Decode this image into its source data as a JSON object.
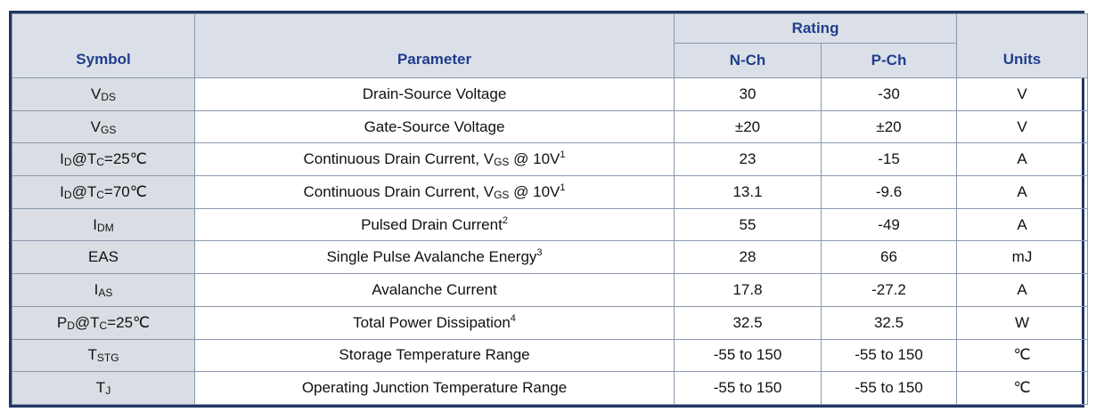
{
  "header": {
    "symbol": "Symbol",
    "parameter": "Parameter",
    "rating": "Rating",
    "nch": "N-Ch",
    "pch": "P-Ch",
    "units": "Units"
  },
  "rows": [
    {
      "sym_main": "V",
      "sym_sub": "DS",
      "sym_tail": "",
      "param": "Drain-Source Voltage",
      "param_sub": "",
      "param_tail": "",
      "param_sup": "",
      "n": "30",
      "p": "-30",
      "unit": "V"
    },
    {
      "sym_main": "V",
      "sym_sub": "GS",
      "sym_tail": "",
      "param": "Gate-Source Voltage",
      "param_sub": "",
      "param_tail": "",
      "param_sup": "",
      "n": "±20",
      "p": "±20",
      "unit": "V"
    },
    {
      "sym_main": "I",
      "sym_sub": "D",
      "sym_tail": "@T",
      "sym_sub2": "C",
      "sym_tail2": "=25℃",
      "param": "Continuous Drain Current, V",
      "param_sub": "GS",
      "param_tail": " @ 10V",
      "param_sup": "1",
      "n": "23",
      "p": "-15",
      "unit": "A"
    },
    {
      "sym_main": "I",
      "sym_sub": "D",
      "sym_tail": "@T",
      "sym_sub2": "C",
      "sym_tail2": "=70℃",
      "param": "Continuous Drain Current, V",
      "param_sub": "GS",
      "param_tail": " @ 10V",
      "param_sup": "1",
      "n": "13.1",
      "p": "-9.6",
      "unit": "A"
    },
    {
      "sym_main": "I",
      "sym_sub": "DM",
      "sym_tail": "",
      "param": "Pulsed Drain Current",
      "param_sub": "",
      "param_tail": "",
      "param_sup": "2",
      "n": "55",
      "p": "-49",
      "unit": "A"
    },
    {
      "sym_main": "EAS",
      "sym_sub": "",
      "sym_tail": "",
      "param": "Single Pulse Avalanche Energy",
      "param_sub": "",
      "param_tail": "",
      "param_sup": "3",
      "n": "28",
      "p": "66",
      "unit": "mJ"
    },
    {
      "sym_main": "I",
      "sym_sub": "AS",
      "sym_tail": "",
      "param": "Avalanche Current",
      "param_sub": "",
      "param_tail": "",
      "param_sup": "",
      "n": "17.8",
      "p": "-27.2",
      "unit": "A"
    },
    {
      "sym_main": "P",
      "sym_sub": "D",
      "sym_tail": "@T",
      "sym_sub2": "C",
      "sym_tail2": "=25℃",
      "param": "Total Power Dissipation",
      "param_sub": "",
      "param_tail": "",
      "param_sup": "4",
      "n": "32.5",
      "p": "32.5",
      "unit": "W"
    },
    {
      "sym_main": "T",
      "sym_sub": "STG",
      "sym_tail": "",
      "param": "Storage Temperature Range",
      "param_sub": "",
      "param_tail": "",
      "param_sup": "",
      "n": "-55 to 150",
      "p": "-55 to 150",
      "unit": "℃"
    },
    {
      "sym_main": "T",
      "sym_sub": "J",
      "sym_tail": "",
      "param": "Operating Junction Temperature Range",
      "param_sub": "",
      "param_tail": "",
      "param_sup": "",
      "n": "-55 to 150",
      "p": "-55 to 150",
      "unit": "℃"
    }
  ]
}
